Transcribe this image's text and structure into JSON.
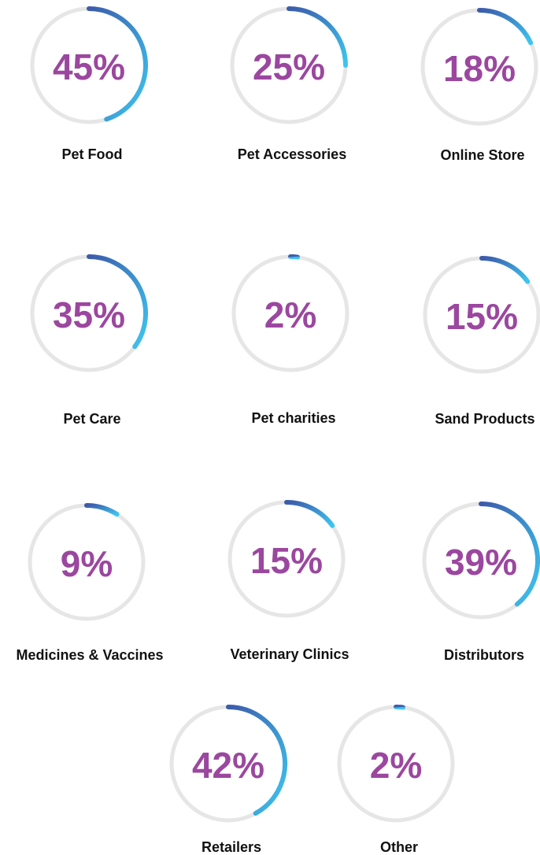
{
  "gauges": [
    {
      "label": "Pet Food",
      "value": 45,
      "value_label": "45%"
    },
    {
      "label": "Pet Accessories",
      "value": 25,
      "value_label": "25%"
    },
    {
      "label": "Online Store",
      "value": 18,
      "value_label": "18%"
    },
    {
      "label": "Pet Care",
      "value": 35,
      "value_label": "35%"
    },
    {
      "label": "Pet charities",
      "value": 2,
      "value_label": "2%"
    },
    {
      "label": "Sand Products",
      "value": 15,
      "value_label": "15%"
    },
    {
      "label": "Medicines & Vaccines",
      "value": 9,
      "value_label": "9%"
    },
    {
      "label": "Veterinary Clinics",
      "value": 15,
      "value_label": "15%"
    },
    {
      "label": "Distributors",
      "value": 39,
      "value_label": "39%"
    },
    {
      "label": "Retailers",
      "value": 42,
      "value_label": "42%"
    },
    {
      "label": "Other",
      "value": 2,
      "value_label": "2%"
    }
  ]
}
